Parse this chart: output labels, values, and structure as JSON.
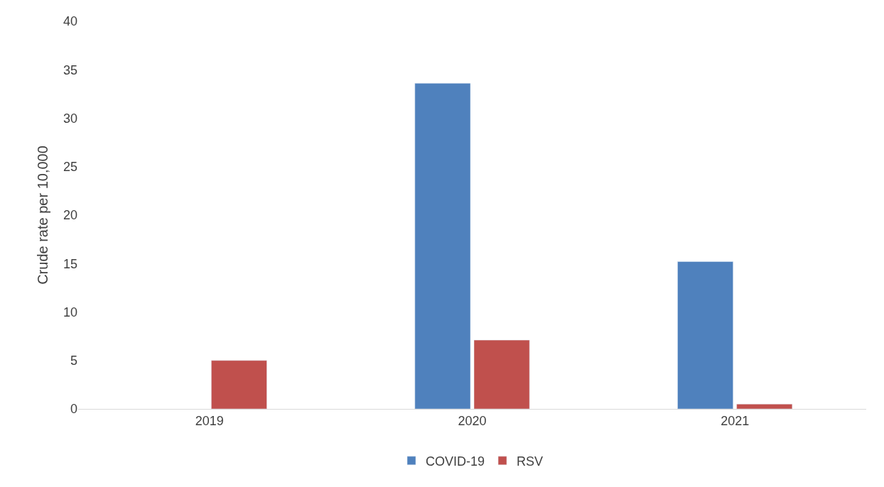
{
  "chart_data": {
    "type": "bar",
    "ylabel": "Crude rate per 10,000",
    "categories": [
      "2019",
      "2020",
      "2021"
    ],
    "series": [
      {
        "name": "COVID-19",
        "color": "#4f81bd",
        "values": [
          null,
          33.6,
          15.2
        ]
      },
      {
        "name": "RSV",
        "color": "#c0504d",
        "values": [
          5.0,
          7.1,
          0.5
        ]
      }
    ],
    "ylim": [
      0,
      40
    ],
    "yticks": [
      0,
      5,
      10,
      15,
      20,
      25,
      30,
      35,
      40
    ],
    "grid": false,
    "legend": "bottom"
  }
}
